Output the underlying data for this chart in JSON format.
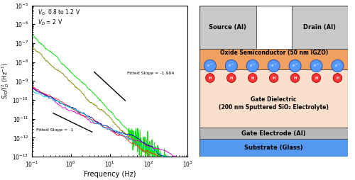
{
  "left_panel": {
    "ylabel": "S_{ID}/I_D^2 (Hz^{-1})",
    "xlabel": "Frequency (Hz)",
    "xlim": [
      0.1,
      1000
    ],
    "ylim": [
      1e-13,
      1e-05
    ],
    "annotation_vg": "V_G: 0.8 to 1.2 V",
    "annotation_vd": "V_D = 2 V",
    "fitted_slope_high": -1.904,
    "fitted_slope_low": -1.0,
    "fitted_slope_high_label": "Fitted Slope = -1.904",
    "fitted_slope_low_label": "Fitted Slope = -1",
    "line_colors": [
      "#00dd00",
      "#888800",
      "#cc00cc",
      "#ff2222",
      "#0000bb",
      "#00cccc"
    ],
    "line_y0": [
      3e-07,
      6e-08,
      5e-10,
      5e-10,
      4e-10,
      3e-10
    ],
    "line_slopes": [
      -1.904,
      -1.904,
      -1.1,
      -1.0,
      -1.0,
      -1.0
    ]
  },
  "right_panel": {
    "source_label": "Source (Al)",
    "drain_label": "Drain (Al)",
    "oxide_label": "Oxide Semiconductor (50 nm IGZO)",
    "dielectric_label": "Gate Dielectric\n(200 nm Sputtered SiO₂ Electrolyte)",
    "gate_label": "Gate Electrode (Al)",
    "substrate_label": "Substrate (Glass)",
    "oxide_color": "#f0a060",
    "dielectric_color": "#fae0cc",
    "gate_color": "#b8b8b8",
    "substrate_color": "#5599ee",
    "source_drain_color": "#c8c8c8",
    "electron_color": "#5599ff",
    "ion_color": "#ff3333",
    "n_pairs": 7
  }
}
